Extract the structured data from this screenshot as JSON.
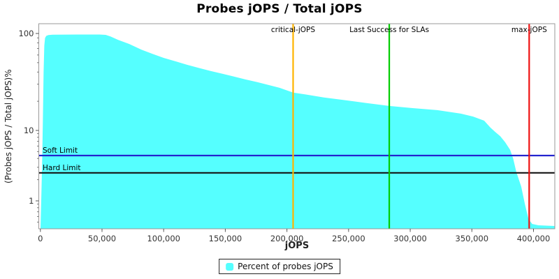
{
  "chart_data": {
    "type": "area",
    "title": "Probes jOPS / Total jOPS",
    "xlabel": "jOPS",
    "ylabel": "(Probes jOPS / Total jOPS)%",
    "x_ticks": [
      0,
      50000,
      100000,
      150000,
      200000,
      250000,
      300000,
      350000,
      400000
    ],
    "xlim": [
      0,
      417000
    ],
    "y_scale": "log",
    "y_major_ticks": [
      100,
      10,
      1
    ],
    "y_minor_ticks": [
      90,
      80,
      70,
      60,
      50,
      40,
      30,
      20,
      9,
      8,
      7,
      6,
      5,
      4,
      3,
      2,
      0.9,
      0.8,
      0.7,
      0.6,
      0.5
    ],
    "ylim": [
      0.4,
      115
    ],
    "grid": false,
    "legend_position": "bottom-center",
    "series": [
      {
        "name": "Percent of probes jOPS",
        "color": "#55FFFF",
        "points": [
          [
            100,
            0.42
          ],
          [
            700,
            1.0
          ],
          [
            1400,
            3.5
          ],
          [
            2000,
            12
          ],
          [
            2600,
            40
          ],
          [
            3200,
            75
          ],
          [
            3800,
            90
          ],
          [
            4800,
            94.5
          ],
          [
            6500,
            96.3
          ],
          [
            10000,
            97.2
          ],
          [
            30000,
            97.5
          ],
          [
            48000,
            97.5
          ],
          [
            53000,
            96.8
          ],
          [
            57000,
            93
          ],
          [
            63000,
            86
          ],
          [
            72000,
            78
          ],
          [
            82000,
            68
          ],
          [
            91000,
            61.5
          ],
          [
            100000,
            56
          ],
          [
            110000,
            51.5
          ],
          [
            119000,
            47.5
          ],
          [
            129000,
            44
          ],
          [
            138000,
            41
          ],
          [
            148000,
            38.3
          ],
          [
            157000,
            36
          ],
          [
            166000,
            33.6
          ],
          [
            176000,
            31.5
          ],
          [
            194000,
            27.5
          ],
          [
            205000,
            24.6
          ],
          [
            215000,
            23.5
          ],
          [
            230000,
            21.9
          ],
          [
            245000,
            20.7
          ],
          [
            264000,
            19.2
          ],
          [
            283000,
            17.9
          ],
          [
            302000,
            17.0
          ],
          [
            322000,
            16.2
          ],
          [
            341000,
            14.9
          ],
          [
            351000,
            13.9
          ],
          [
            360000,
            12.6
          ],
          [
            365000,
            10.7
          ],
          [
            369000,
            9.5
          ],
          [
            373000,
            8.3
          ],
          [
            377000,
            6.8
          ],
          [
            381000,
            5.3
          ],
          [
            383500,
            4.0
          ],
          [
            386000,
            2.6
          ],
          [
            390000,
            1.6
          ],
          [
            393000,
            0.9
          ],
          [
            396000,
            0.55
          ],
          [
            399000,
            0.47
          ],
          [
            404000,
            0.45
          ],
          [
            417000,
            0.44
          ]
        ]
      }
    ],
    "limit_lines": [
      {
        "label": "Soft Limit",
        "value": 4.4,
        "color": "#2424CF"
      },
      {
        "label": "Hard Limit",
        "value": 2.5,
        "color": "#151515"
      }
    ],
    "marker_lines": [
      {
        "label": "critical-jOPS",
        "value": 205000,
        "color": "#FFB400"
      },
      {
        "label": "Last Success for SLAs",
        "value": 283000,
        "color": "#00CC00"
      },
      {
        "label": "max-jOPS",
        "value": 396500,
        "color": "#EE1111"
      }
    ],
    "legend": {
      "items": [
        {
          "label": "Percent of probes jOPS",
          "color": "#55FFFF"
        }
      ]
    }
  }
}
